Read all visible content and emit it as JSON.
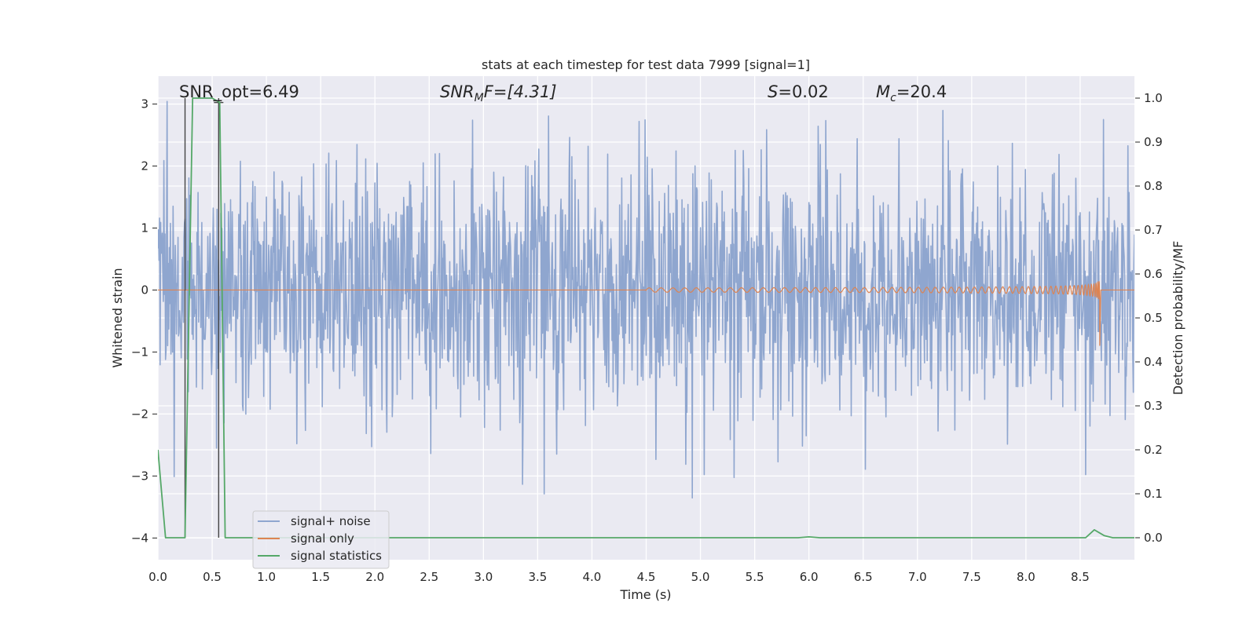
{
  "chart_data": {
    "type": "line",
    "title": "stats at each timestep for test data 7999 [signal=1]",
    "xlabel": "Time (s)",
    "ylabel_left": "Whitened strain",
    "ylabel_right": "Detection probability/MF",
    "xlim": [
      0.0,
      9.0
    ],
    "ylim_left": [
      -4.35,
      3.45
    ],
    "ylim_right": [
      -0.05,
      1.05
    ],
    "xticks": [
      "0.0",
      "0.5",
      "1.0",
      "1.5",
      "2.0",
      "2.5",
      "3.0",
      "3.5",
      "4.0",
      "4.5",
      "5.0",
      "5.5",
      "6.0",
      "6.5",
      "7.0",
      "7.5",
      "8.0",
      "8.5"
    ],
    "yticks_left": [
      "−4",
      "−3",
      "−2",
      "−1",
      "0",
      "1",
      "2",
      "3"
    ],
    "yticks_right": [
      "0.0",
      "0.1",
      "0.2",
      "0.3",
      "0.4",
      "0.5",
      "0.6",
      "0.7",
      "0.8",
      "0.9",
      "1.0"
    ],
    "grid": true,
    "legend_position": "lower-left",
    "annotations": {
      "snr_opt": "SNR_opt=6.49",
      "snr_mf_label": "SNR",
      "snr_mf_sub": "M",
      "snr_mf_rest": "F=[4.31]",
      "s_label": "S",
      "s_value": "=0.02",
      "mc_label": "M",
      "mc_sub": "c",
      "mc_value": "=20.4"
    },
    "series": [
      {
        "name": "signal+ noise",
        "color": "#8fa6cf",
        "noise_amplitude_sigma": 1.0,
        "x_range": [
          0.0,
          9.0
        ]
      },
      {
        "name": "signal only",
        "color": "#dd8452",
        "chirp_start_s": 4.5,
        "chirp_end_s": 8.68,
        "peak_amplitude": 1.0
      },
      {
        "name": "signal statistics",
        "color": "#55a868",
        "x": [
          0.0,
          0.07,
          0.25,
          0.32,
          0.5,
          0.57,
          0.62,
          1.0,
          5.9,
          6.0,
          6.1,
          8.55,
          8.63,
          8.72,
          8.8,
          9.0
        ],
        "y": [
          0.2,
          0.0,
          0.0,
          1.0,
          1.0,
          0.99,
          0.0,
          0.0,
          0.0,
          0.002,
          0.0,
          0.0,
          0.018,
          0.005,
          0.0,
          0.0
        ]
      }
    ],
    "vertical_markers_s": [
      0.25,
      0.56
    ]
  }
}
